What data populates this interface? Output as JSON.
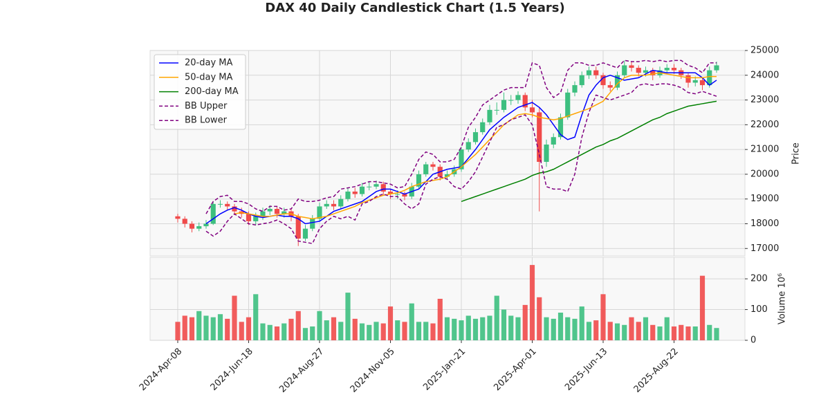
{
  "chart_data": {
    "type": "candlestick",
    "title": "DAX 40 Daily Candlestick Chart (1.5 Years)",
    "ylabel": "Price",
    "y2label": "Volume  10⁶",
    "up_color": "#3dbf7f",
    "down_color": "#f04a4a",
    "grid": true,
    "legend": "upper left",
    "xlim": [
      -19.5,
      400
    ],
    "ylim": [
      16700,
      25000
    ],
    "yticks": [
      17000,
      18000,
      19000,
      20000,
      21000,
      22000,
      23000,
      24000,
      25000
    ],
    "y2lim": [
      0,
      270
    ],
    "y2ticks": [
      0,
      100,
      200
    ],
    "xticks": [
      {
        "value": 0,
        "label": "2024-Apr-08"
      },
      {
        "value": 50,
        "label": "2024-Jun-18"
      },
      {
        "value": 100,
        "label": "2024-Aug-27"
      },
      {
        "value": 150,
        "label": "2024-Nov-05"
      },
      {
        "value": 200,
        "label": "2025-Jan-21"
      },
      {
        "value": 250,
        "label": "2025-Apr-01"
      },
      {
        "value": 300,
        "label": "2025-Jun-13"
      },
      {
        "value": 350,
        "label": "2025-Aug-22"
      }
    ],
    "x": [
      0,
      5,
      10,
      15,
      20,
      25,
      30,
      35,
      40,
      45,
      50,
      55,
      60,
      65,
      70,
      75,
      80,
      85,
      90,
      95,
      100,
      105,
      110,
      115,
      120,
      125,
      130,
      135,
      140,
      145,
      150,
      155,
      160,
      165,
      170,
      175,
      180,
      185,
      190,
      195,
      200,
      205,
      210,
      215,
      220,
      225,
      230,
      235,
      240,
      245,
      250,
      255,
      260,
      265,
      270,
      275,
      280,
      285,
      290,
      295,
      300,
      305,
      310,
      315,
      320,
      325,
      330,
      335,
      340,
      345,
      350,
      355,
      360,
      365,
      370,
      375,
      380
    ],
    "open": [
      18300,
      18200,
      18000,
      17800,
      17900,
      18000,
      18800,
      18800,
      18700,
      18500,
      18400,
      18100,
      18300,
      18500,
      18600,
      18400,
      18500,
      18300,
      17400,
      17800,
      18200,
      18700,
      18800,
      18700,
      19000,
      19300,
      19200,
      19500,
      19500,
      19600,
      19300,
      19200,
      19200,
      19100,
      19500,
      20000,
      20400,
      20300,
      19900,
      20000,
      20200,
      21000,
      21300,
      21700,
      22100,
      22600,
      22600,
      23000,
      23000,
      23200,
      22700,
      22500,
      20500,
      21200,
      21500,
      22300,
      23300,
      23600,
      24000,
      24200,
      24000,
      23600,
      23500,
      24000,
      24400,
      24300,
      24100,
      24200,
      24000,
      24200,
      24300,
      24200,
      24000,
      23700,
      23800,
      23600,
      24200
    ],
    "high": [
      18400,
      18300,
      18100,
      18050,
      18150,
      18900,
      18950,
      18900,
      18800,
      18650,
      18500,
      18450,
      18650,
      18750,
      18700,
      18650,
      18600,
      18400,
      17950,
      18350,
      18850,
      18950,
      18950,
      19150,
      19450,
      19450,
      19650,
      19700,
      19750,
      19700,
      19400,
      19350,
      19300,
      19650,
      20150,
      20500,
      20500,
      20400,
      20150,
      20350,
      21100,
      21450,
      21850,
      22250,
      22800,
      22900,
      23300,
      23200,
      23350,
      23300,
      23000,
      22700,
      21400,
      21650,
      22450,
      23450,
      23750,
      24150,
      24350,
      24350,
      24100,
      23750,
      24150,
      24600,
      24550,
      24400,
      24350,
      24300,
      24350,
      24450,
      24450,
      24300,
      24100,
      23950,
      23900,
      24350,
      24550
    ],
    "low": [
      18050,
      17850,
      17650,
      17700,
      17800,
      17950,
      18650,
      18550,
      18350,
      18250,
      17950,
      17950,
      18150,
      18350,
      18250,
      18250,
      18100,
      17100,
      17300,
      17700,
      18100,
      18600,
      18550,
      18600,
      18900,
      19050,
      19100,
      19350,
      19400,
      19150,
      19000,
      19000,
      18950,
      19000,
      19400,
      19900,
      20150,
      19750,
      19800,
      19900,
      20100,
      20900,
      21200,
      21600,
      22000,
      22400,
      22500,
      22800,
      22850,
      22550,
      22300,
      18500,
      20300,
      21050,
      21400,
      22200,
      23150,
      23500,
      23850,
      23850,
      23450,
      23350,
      23400,
      23900,
      24150,
      23950,
      23950,
      23800,
      23900,
      24100,
      24050,
      23850,
      23500,
      23550,
      23400,
      23500,
      24100
    ],
    "close": [
      18200,
      18000,
      17800,
      17900,
      18000,
      18800,
      18800,
      18700,
      18500,
      18400,
      18100,
      18300,
      18500,
      18600,
      18400,
      18500,
      18300,
      17400,
      17800,
      18200,
      18700,
      18800,
      18700,
      19000,
      19300,
      19200,
      19500,
      19500,
      19600,
      19300,
      19200,
      19200,
      19100,
      19500,
      20000,
      20400,
      20300,
      19900,
      20000,
      20200,
      21000,
      21300,
      21700,
      22100,
      22600,
      22600,
      23000,
      23000,
      23200,
      22700,
      22500,
      20500,
      21200,
      21500,
      22300,
      23300,
      23600,
      24000,
      24200,
      24000,
      23600,
      23500,
      24000,
      24400,
      24300,
      24100,
      24200,
      24000,
      24200,
      24300,
      24200,
      24000,
      23700,
      23800,
      23600,
      24200,
      24400
    ],
    "volume": [
      60,
      80,
      75,
      95,
      80,
      75,
      85,
      70,
      145,
      60,
      75,
      150,
      55,
      50,
      45,
      55,
      70,
      95,
      40,
      45,
      95,
      65,
      75,
      60,
      155,
      70,
      55,
      50,
      60,
      55,
      110,
      65,
      60,
      120,
      60,
      60,
      55,
      135,
      75,
      70,
      65,
      80,
      70,
      75,
      80,
      145,
      100,
      80,
      75,
      115,
      245,
      140,
      75,
      70,
      90,
      75,
      70,
      110,
      60,
      65,
      150,
      60,
      55,
      50,
      75,
      60,
      75,
      50,
      45,
      75,
      45,
      50,
      45,
      45,
      210,
      50,
      40
    ],
    "lines": [
      {
        "name": "20-day MA",
        "color": "#0000ff",
        "dash": false,
        "values": [
          null,
          null,
          null,
          null,
          18000,
          18200,
          18400,
          18550,
          18650,
          18550,
          18400,
          18300,
          18250,
          18300,
          18350,
          18300,
          18300,
          18200,
          18000,
          18050,
          18100,
          18300,
          18500,
          18600,
          18700,
          18800,
          18900,
          19100,
          19300,
          19400,
          19400,
          19300,
          19200,
          19300,
          19400,
          19700,
          20000,
          20100,
          20200,
          20250,
          20300,
          20650,
          21000,
          21400,
          21800,
          22050,
          22300,
          22500,
          22700,
          22800,
          22900,
          22700,
          22400,
          22000,
          21600,
          21400,
          21500,
          22400,
          23200,
          23600,
          23900,
          24000,
          23900,
          23800,
          23850,
          23900,
          24050,
          24200,
          24150,
          24100,
          24100,
          24100,
          24100,
          24100,
          23900,
          23600,
          23800
        ]
      },
      {
        "name": "50-day MA",
        "color": "#ffa500",
        "dash": false,
        "values": [
          null,
          null,
          null,
          null,
          null,
          null,
          null,
          null,
          18400,
          18450,
          18400,
          18350,
          18300,
          18300,
          18350,
          18400,
          18400,
          18300,
          18250,
          18200,
          18250,
          18300,
          18400,
          18500,
          18600,
          18700,
          18850,
          18950,
          19050,
          19150,
          19200,
          19250,
          19350,
          19500,
          19600,
          19700,
          19750,
          19800,
          19900,
          20100,
          20300,
          20550,
          20800,
          21100,
          21400,
          21700,
          22000,
          22200,
          22400,
          22450,
          22400,
          22300,
          22250,
          22200,
          22250,
          22350,
          22450,
          22550,
          22650,
          22800,
          22950,
          23300,
          23650,
          23900,
          24000,
          24000,
          24000,
          24050,
          24100,
          24050,
          24000,
          23950,
          23900,
          23900,
          23900,
          23950,
          23950
        ]
      },
      {
        "name": "200-day MA",
        "color": "#008000",
        "dash": false,
        "values": [
          null,
          null,
          null,
          null,
          null,
          null,
          null,
          null,
          null,
          null,
          null,
          null,
          null,
          null,
          null,
          null,
          null,
          null,
          null,
          null,
          null,
          null,
          null,
          null,
          null,
          null,
          null,
          null,
          null,
          null,
          null,
          null,
          null,
          null,
          null,
          null,
          null,
          null,
          null,
          null,
          18900,
          19000,
          19100,
          19200,
          19300,
          19400,
          19500,
          19600,
          19700,
          19800,
          19950,
          20050,
          20100,
          20200,
          20350,
          20500,
          20650,
          20800,
          20950,
          21100,
          21200,
          21350,
          21450,
          21600,
          21750,
          21900,
          22050,
          22200,
          22300,
          22450,
          22550,
          22650,
          22750,
          22800,
          22850,
          22900,
          22950
        ]
      },
      {
        "name": "BB Upper",
        "color": "#800080",
        "dash": true,
        "values": [
          null,
          null,
          null,
          null,
          18400,
          18900,
          19100,
          19150,
          18900,
          18900,
          18800,
          18600,
          18500,
          18700,
          18700,
          18550,
          18600,
          19000,
          18900,
          18900,
          18950,
          19050,
          19100,
          19400,
          19450,
          19500,
          19600,
          19700,
          19700,
          19650,
          19600,
          19450,
          19500,
          20000,
          20600,
          20900,
          20800,
          20500,
          20500,
          20600,
          21100,
          21900,
          22300,
          22800,
          23000,
          23200,
          23400,
          23500,
          23500,
          23500,
          24500,
          24400,
          23500,
          23100,
          23300,
          24200,
          24500,
          24500,
          24400,
          24400,
          24500,
          24400,
          24300,
          24600,
          24550,
          24550,
          24600,
          24550,
          24600,
          24550,
          24600,
          24600,
          24400,
          24300,
          24100,
          24500,
          24500
        ]
      },
      {
        "name": "BB Lower",
        "color": "#800080",
        "dash": true,
        "values": [
          null,
          null,
          null,
          null,
          17700,
          17500,
          17700,
          18100,
          18400,
          18200,
          18000,
          17950,
          18000,
          18050,
          18150,
          18000,
          17800,
          17300,
          17250,
          17200,
          17800,
          18100,
          18300,
          18200,
          18300,
          18150,
          18800,
          18900,
          19100,
          19200,
          19100,
          19100,
          18800,
          18600,
          18800,
          19600,
          19800,
          19900,
          19800,
          19500,
          19400,
          19700,
          20100,
          20700,
          21300,
          21900,
          22000,
          22200,
          22300,
          22400,
          22000,
          20800,
          19500,
          19400,
          19400,
          19300,
          20000,
          21500,
          22500,
          23200,
          23100,
          23000,
          23100,
          23200,
          23300,
          23600,
          23650,
          23600,
          23650,
          23650,
          23600,
          23500,
          23300,
          23250,
          23350,
          23250,
          23150
        ]
      }
    ]
  }
}
